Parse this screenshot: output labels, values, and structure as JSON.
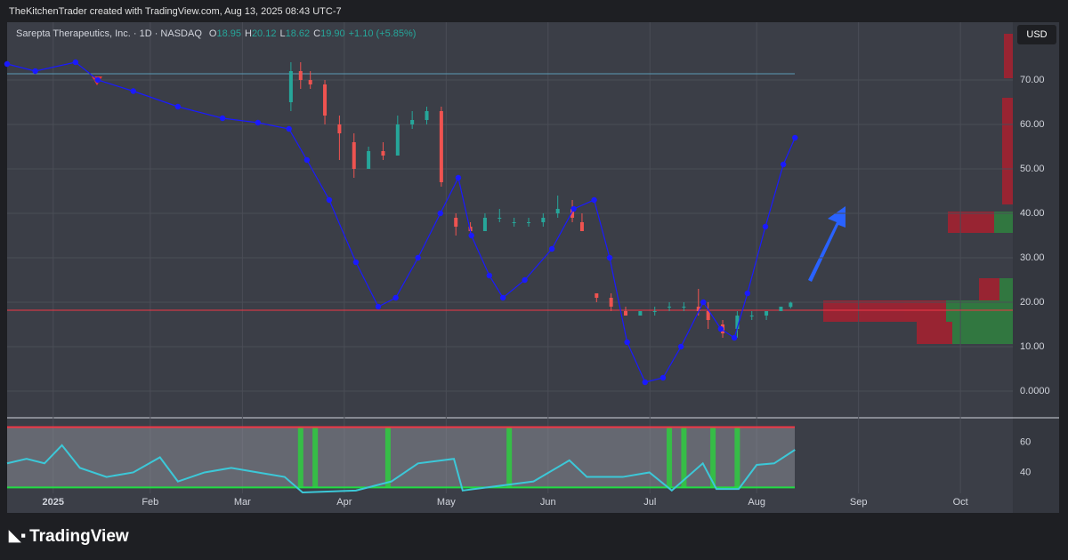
{
  "header": "TheKitchenTrader created with TradingView.com, Aug 13, 2025 08:43 UTC-7",
  "currency": "USD",
  "brand": "TradingView",
  "chart_data": [
    {
      "type": "candlestick",
      "title": "Sarepta Therapeutics, Inc. · 1D · NASDAQ",
      "legend": [
        {
          "label": "O",
          "value": 18.95
        },
        {
          "label": "H",
          "value": 20.12
        },
        {
          "label": "L",
          "value": 18.62
        },
        {
          "label": "C",
          "value": 19.9,
          "value_label": "19.90"
        }
      ],
      "change": "+1.10 (+5.85%)",
      "x": [
        49,
        51,
        53,
        56,
        59,
        62,
        65,
        68,
        71,
        74,
        77,
        80,
        83,
        86,
        89,
        92,
        95,
        98,
        101,
        104,
        107,
        109,
        112,
        115,
        118,
        121,
        124,
        127,
        130,
        133,
        135,
        138,
        141,
        144,
        147,
        150,
        152
      ],
      "open": [
        65,
        72,
        70,
        69,
        60,
        56,
        50,
        54,
        53,
        60,
        61,
        63,
        39,
        37,
        36,
        39,
        38,
        38,
        38,
        40,
        41,
        38,
        22,
        21,
        18,
        17,
        18,
        19,
        19,
        19,
        18,
        15,
        14,
        17,
        17,
        18,
        18.95
      ],
      "high": [
        74,
        74,
        72,
        70,
        62,
        58,
        55,
        56,
        62,
        63,
        64,
        64,
        40,
        38,
        40,
        41,
        39,
        39,
        40,
        44,
        43,
        40,
        22,
        22,
        19,
        18,
        19,
        20,
        20,
        23,
        20,
        16,
        18,
        18,
        18,
        19,
        20.12
      ],
      "low": [
        63,
        68,
        68,
        60,
        52,
        48,
        50,
        52,
        53,
        59,
        60,
        46,
        35,
        35,
        36,
        38,
        37,
        37,
        37,
        39,
        38,
        36,
        20,
        18,
        17,
        17,
        17,
        18,
        18,
        17,
        14,
        12,
        12,
        16,
        16,
        18,
        18.62
      ],
      "close": [
        72,
        70,
        69,
        62,
        58,
        50,
        54,
        53,
        60,
        61,
        63,
        47,
        37,
        36,
        39,
        39,
        38,
        38,
        39,
        41,
        39,
        36,
        21,
        19,
        17,
        18,
        18,
        19,
        19,
        18,
        16,
        13,
        17,
        17,
        18,
        19,
        19.9
      ],
      "up_color": "#26a69a",
      "down_color": "#ef5350",
      "overlay": {
        "color": "#1a1aff",
        "x": [
          -9.5,
          -3.7,
          4.6,
          9.2,
          16.5,
          25.7,
          34.9,
          42.2,
          48.6,
          52.3,
          56.9,
          62.4,
          67,
          70.6,
          75.2,
          79.8,
          83.5,
          86.2,
          89.9,
          92.7,
          97.2,
          102.8,
          107.3,
          111.5,
          114.7,
          118.3,
          122,
          125.7,
          129.4,
          134,
          137.6,
          140.4,
          143.1,
          146.8,
          150.5,
          152.9
        ],
        "values": [
          73.6,
          72,
          74,
          70,
          67.5,
          64,
          61.4,
          60.4,
          59,
          52,
          43,
          29,
          19,
          21,
          30,
          40,
          48,
          35,
          26,
          21,
          25,
          32,
          41,
          43,
          30,
          11,
          2,
          3,
          10,
          20,
          14,
          12,
          22,
          37,
          51,
          57
        ]
      },
      "hlines": [
        {
          "value": 71.4,
          "color": "#5b9bb5"
        },
        {
          "value": 18.2,
          "color": "#f23645"
        }
      ],
      "xlim": [
        -9.5,
        197.8
      ],
      "ylim": [
        -6,
        83
      ],
      "xticks": [
        {
          "value": 0,
          "label": "2025"
        },
        {
          "value": 20,
          "label": "Feb"
        },
        {
          "value": 39,
          "label": "Mar"
        },
        {
          "value": 60,
          "label": "Apr"
        },
        {
          "value": 81,
          "label": "May"
        },
        {
          "value": 102,
          "label": "Jun"
        },
        {
          "value": 123,
          "label": "Jul"
        },
        {
          "value": 145,
          "label": "Aug"
        },
        {
          "value": 166,
          "label": "Sep"
        },
        {
          "value": 187,
          "label": "Oct"
        }
      ],
      "yticks": [
        {
          "value": 0,
          "label": "0.0000"
        },
        {
          "value": 10,
          "label": "10.00"
        },
        {
          "value": 20,
          "label": "20.00"
        },
        {
          "value": 30,
          "label": "30.00"
        },
        {
          "value": 40,
          "label": "40.00"
        },
        {
          "value": 50,
          "label": "50.00"
        },
        {
          "value": 60,
          "label": "60.00"
        },
        {
          "value": 70,
          "label": "70.00"
        }
      ],
      "grid": true
    },
    {
      "type": "oscillator",
      "color": "#3cc8d8",
      "x": [
        -9.5,
        -5.5,
        -1.8,
        1.8,
        5.5,
        11,
        16.5,
        22,
        25.7,
        31.2,
        36.7,
        42.2,
        47.7,
        51.4,
        62.4,
        69.7,
        75.2,
        82.6,
        84.4,
        91.7,
        99,
        106.4,
        110,
        117.4,
        122.9,
        127.5,
        133.9,
        136.7,
        141.3,
        145,
        148.6,
        152.9
      ],
      "values": [
        46,
        49,
        46,
        58,
        43,
        37,
        40,
        50,
        34,
        40,
        43,
        40,
        37,
        26.7,
        28,
        34,
        46,
        49,
        28,
        31,
        34,
        48,
        37,
        37,
        40,
        28,
        46,
        29,
        29,
        45,
        46,
        55
      ],
      "levels": [
        {
          "value": 70,
          "color": "#f23645"
        },
        {
          "value": 30,
          "color": "#22dd44"
        }
      ],
      "signals": [
        51,
        54,
        69,
        94,
        127,
        130,
        136,
        141
      ],
      "ylim": [
        27.9,
        71.5
      ],
      "yticks": [
        40,
        60
      ],
      "grid": true
    }
  ]
}
